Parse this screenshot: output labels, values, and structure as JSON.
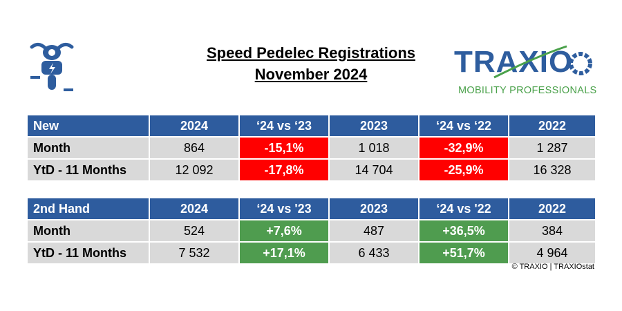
{
  "title": {
    "line1": "Speed Pedelec Registrations",
    "line2": "November 2024"
  },
  "logo": {
    "name": "TRAXIO",
    "tagline": "MOBILITY PROFESSIONALS",
    "color_main": "#2e5d9e",
    "color_accent": "#4aa14a"
  },
  "icon": "speed-pedelec-rider-icon",
  "copyright": "© TRAXIO | TRAXIOstat",
  "colors": {
    "header": "#2e5c9e",
    "negative": "#ff0000",
    "positive": "#4f9c4f",
    "cell": "#d9d9d9"
  },
  "chart_data": [
    {
      "type": "table",
      "title": "New",
      "columns": [
        "New",
        "2024",
        "‘24 vs ‘23",
        "2023",
        "‘24 vs ‘22",
        "2022"
      ],
      "rows": [
        {
          "label": "Month",
          "y2024": "864",
          "vs23": "-15,1%",
          "y2023": "1 018",
          "vs22": "-32,9%",
          "y2022": "1 287"
        },
        {
          "label": "YtD - 11 Months",
          "y2024": "12 092",
          "vs23": "-17,8%",
          "y2023": "14 704",
          "vs22": "-25,9%",
          "y2022": "16 328"
        }
      ]
    },
    {
      "type": "table",
      "title": "2nd Hand",
      "columns": [
        "2nd Hand",
        "2024",
        "‘24 vs '23",
        "2023",
        "‘24 vs '22",
        "2022"
      ],
      "rows": [
        {
          "label": "Month",
          "y2024": "524",
          "vs23": "+7,6%",
          "y2023": "487",
          "vs22": "+36,5%",
          "y2022": "384"
        },
        {
          "label": "YtD - 11 Months",
          "y2024": "7 532",
          "vs23": "+17,1%",
          "y2023": "6 433",
          "vs22": "+51,7%",
          "y2022": "4 964"
        }
      ]
    }
  ]
}
